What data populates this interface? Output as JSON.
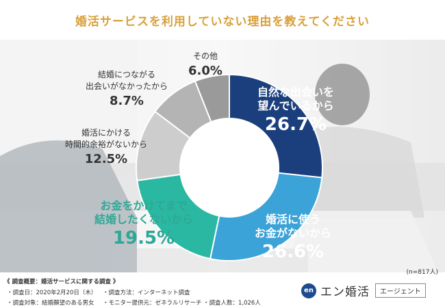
{
  "chart_data": {
    "type": "pie",
    "title": "婚活サービスを利用していない理由を教えてください",
    "sample_size": "(n=817人)",
    "slices": [
      {
        "label_lines": [
          "自然な出会いを",
          "望んでいるから"
        ],
        "value": 26.7,
        "color": "#1a3f7c",
        "text_color": "#ffffff",
        "emphasis": true
      },
      {
        "label_lines": [
          "婚活に使う",
          "お金がないから"
        ],
        "value": 26.6,
        "color": "#3ba3d8",
        "text_color": "#ffffff",
        "emphasis": true
      },
      {
        "label_lines": [
          "お金をかけてまで",
          "結婚したくないから"
        ],
        "value": 19.5,
        "color": "#2bb8a2",
        "text_color": "#2ea896",
        "emphasis": true
      },
      {
        "label_lines": [
          "婚活にかける",
          "時間的余裕がないから"
        ],
        "value": 12.5,
        "color": "#cdcdcd",
        "text_color": "#333333",
        "emphasis": false
      },
      {
        "label_lines": [
          "結婚につながる",
          "出会いがなかったから"
        ],
        "value": 8.7,
        "color": "#b4b4b4",
        "text_color": "#333333",
        "emphasis": false
      },
      {
        "label_lines": [
          "その他"
        ],
        "value": 6.0,
        "color": "#9a9a9a",
        "text_color": "#333333",
        "emphasis": false
      }
    ],
    "value_format": "%"
  },
  "footer": {
    "summary_heading": "《 調査概要：婚活サービスに関する調査 》",
    "date": "・調査日：2020年2月20日（木）",
    "method": "・調査方法：インターネット調査",
    "target": "・調査対象：結婚願望のある男女",
    "provider": "・モニター提供元：ゼネラルリサーチ",
    "respondents": "・調査人数：1,026人"
  },
  "brand": {
    "icon_text": "en",
    "name": "エン婚活",
    "tag": "エージェント"
  }
}
